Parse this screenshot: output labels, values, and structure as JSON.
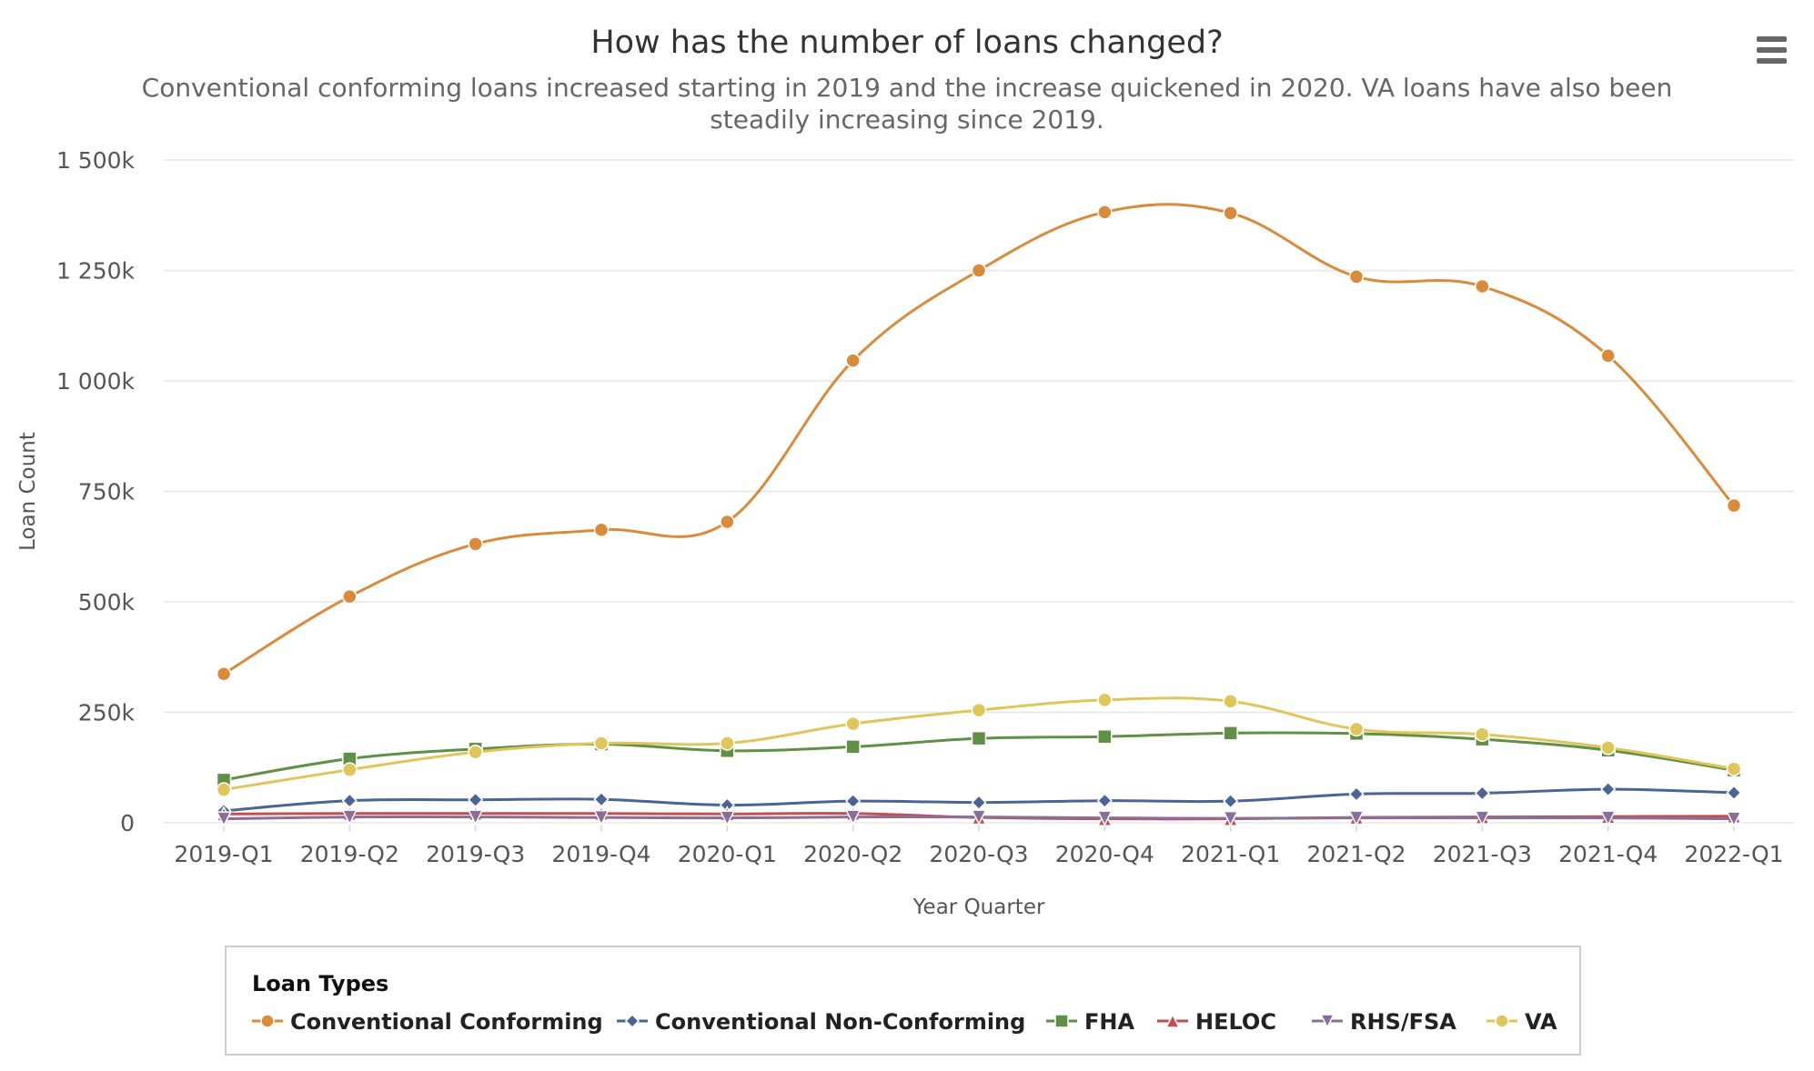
{
  "chart_data": {
    "type": "line",
    "title": "How has the number of loans changed?",
    "subtitle_lines": [
      "Conventional conforming loans increased starting in 2019 and the increase quickened in 2020. VA loans have also been",
      "steadily increasing since 2019."
    ],
    "xlabel": "Year Quarter",
    "ylabel": "Loan Count",
    "categories": [
      "2019-Q1",
      "2019-Q2",
      "2019-Q3",
      "2019-Q4",
      "2020-Q1",
      "2020-Q2",
      "2020-Q3",
      "2020-Q4",
      "2021-Q1",
      "2021-Q2",
      "2021-Q3",
      "2021-Q4",
      "2022-Q1"
    ],
    "ylim": [
      0,
      1500000
    ],
    "yticks": [
      0,
      250000,
      500000,
      750000,
      1000000,
      1250000,
      1500000
    ],
    "ytick_labels": [
      "0",
      "250k",
      "500k",
      "750k",
      "1 000k",
      "1 250k",
      "1 500k"
    ],
    "grid": true,
    "legend": {
      "title": "Loan Types",
      "position": "bottom"
    },
    "series": [
      {
        "name": "Conventional Conforming",
        "color": "#d98b3a",
        "marker": "circle",
        "values": [
          337000,
          512000,
          631000,
          663000,
          681000,
          1046000,
          1250000,
          1382000,
          1380000,
          1236000,
          1214000,
          1057000,
          718000
        ]
      },
      {
        "name": "Conventional Non-Conforming",
        "color": "#4c6396",
        "marker": "diamond",
        "values": [
          27000,
          50000,
          52000,
          53000,
          40000,
          49000,
          46000,
          50000,
          49000,
          65000,
          67000,
          76000,
          68000
        ]
      },
      {
        "name": "FHA",
        "color": "#609046",
        "marker": "square",
        "values": [
          97000,
          145000,
          167000,
          178000,
          163000,
          172000,
          191000,
          195000,
          203000,
          202000,
          189000,
          164000,
          119000
        ]
      },
      {
        "name": "HELOC",
        "color": "#c44e4e",
        "marker": "triangle",
        "values": [
          20000,
          21000,
          21000,
          21000,
          20000,
          21000,
          12000,
          9000,
          9000,
          12000,
          13000,
          14000,
          15000
        ]
      },
      {
        "name": "RHS/FSA",
        "color": "#8a6d9a",
        "marker": "triangle-down",
        "values": [
          9000,
          13000,
          13000,
          12000,
          11000,
          13000,
          13000,
          11000,
          10000,
          11000,
          11000,
          11000,
          9000
        ]
      },
      {
        "name": "VA",
        "color": "#e0c55a",
        "marker": "circle",
        "values": [
          75000,
          120000,
          160000,
          180000,
          180000,
          224000,
          255000,
          278000,
          275000,
          212000,
          200000,
          170000,
          122000
        ]
      }
    ]
  }
}
